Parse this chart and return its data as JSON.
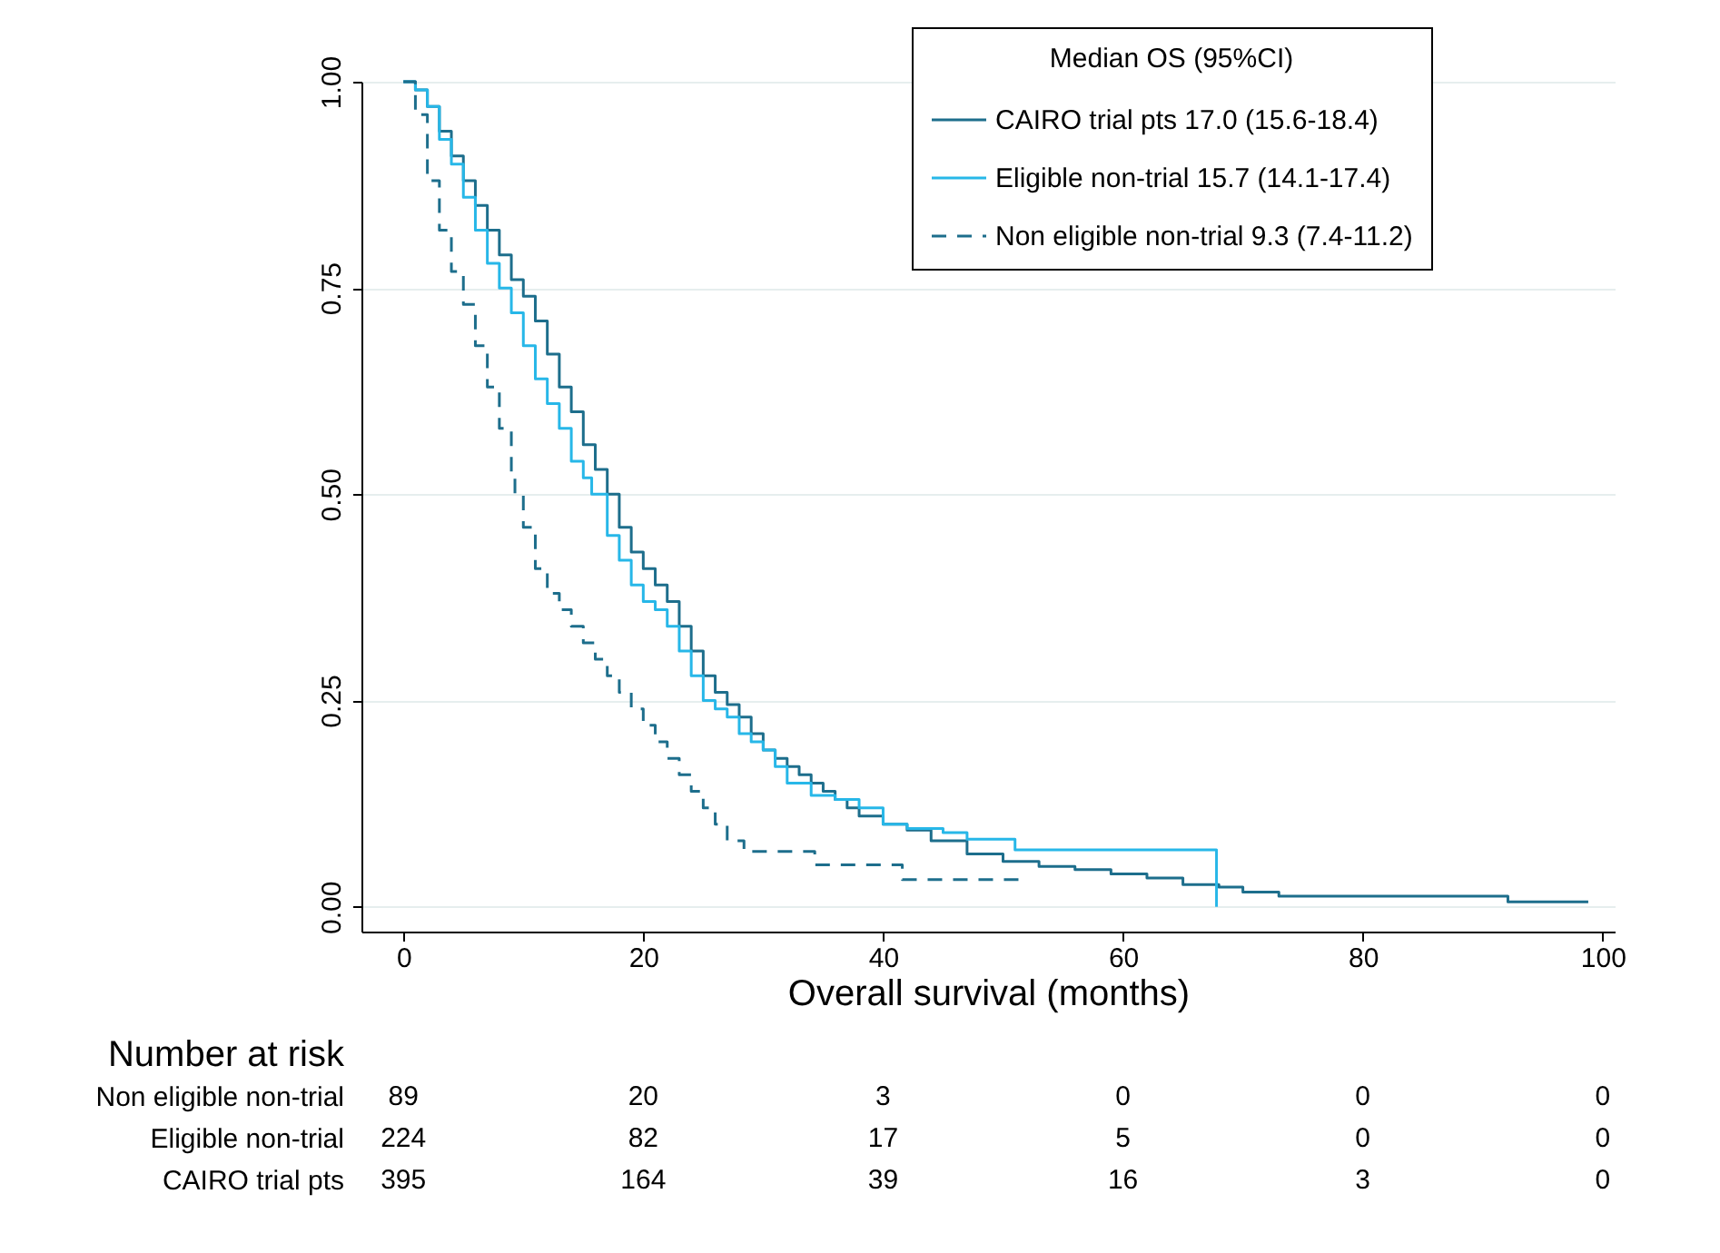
{
  "chart_data": {
    "type": "step",
    "xlabel": "Overall survival (months)",
    "legend_title": "Median OS (95%CI)",
    "legend": "top right",
    "grid": "y",
    "xlim": [
      -3.5,
      101
    ],
    "xticks": [
      0,
      20,
      40,
      60,
      80,
      100
    ],
    "ylim": [
      -0.03,
      1.0
    ],
    "yticks": [
      {
        "value": 0,
        "label": "0.00"
      },
      {
        "value": 0.25,
        "label": "0.25"
      },
      {
        "value": 0.5,
        "label": "0.50"
      },
      {
        "value": 0.75,
        "label": "0.75"
      },
      {
        "value": 1,
        "label": "1.00"
      }
    ],
    "series": [
      {
        "name": "CAIRO trial pts 17.0 (15.6-18.4)",
        "color": "#1d6e8c",
        "line_style": "solid",
        "x": [
          0,
          1,
          2,
          3,
          4,
          5,
          6,
          7,
          8,
          9,
          10,
          11,
          12,
          13,
          14,
          15,
          16,
          17,
          18,
          19,
          20,
          21,
          22,
          23,
          24,
          25,
          26,
          27,
          28,
          29,
          30,
          31,
          32,
          33,
          34,
          35,
          36,
          37,
          38,
          40,
          42,
          44,
          47,
          50,
          53,
          56,
          59,
          62,
          65,
          68,
          70,
          73,
          92,
          92.1,
          98.8
        ],
        "values": [
          1,
          0.99,
          0.97,
          0.94,
          0.91,
          0.88,
          0.85,
          0.82,
          0.79,
          0.76,
          0.74,
          0.71,
          0.67,
          0.63,
          0.6,
          0.56,
          0.53,
          0.5,
          0.46,
          0.43,
          0.41,
          0.39,
          0.37,
          0.34,
          0.31,
          0.28,
          0.26,
          0.245,
          0.23,
          0.21,
          0.19,
          0.18,
          0.17,
          0.16,
          0.15,
          0.14,
          0.13,
          0.12,
          0.11,
          0.1,
          0.093,
          0.08,
          0.064,
          0.055,
          0.049,
          0.045,
          0.04,
          0.035,
          0.027,
          0.024,
          0.018,
          0.013,
          0.013,
          0.006,
          0.006
        ]
      },
      {
        "name": "Eligible non-trial 15.7 (14.1-17.4)",
        "color": "#27b7e8",
        "line_style": "solid",
        "x": [
          0,
          1,
          2,
          3,
          4,
          5,
          6,
          7,
          8,
          9,
          10,
          11,
          12,
          13,
          14,
          15,
          15.7,
          17,
          18,
          19,
          20,
          21,
          22,
          23,
          24,
          25,
          26,
          27,
          28,
          29,
          30,
          31,
          32,
          34,
          36,
          38,
          40,
          42,
          45,
          47,
          51,
          67.8,
          67.8
        ],
        "values": [
          1,
          0.99,
          0.97,
          0.93,
          0.9,
          0.86,
          0.82,
          0.78,
          0.75,
          0.72,
          0.68,
          0.64,
          0.61,
          0.58,
          0.54,
          0.52,
          0.5,
          0.45,
          0.42,
          0.39,
          0.37,
          0.36,
          0.34,
          0.31,
          0.28,
          0.25,
          0.24,
          0.23,
          0.21,
          0.2,
          0.19,
          0.17,
          0.15,
          0.135,
          0.13,
          0.12,
          0.1,
          0.095,
          0.09,
          0.082,
          0.069,
          0.069,
          0
        ]
      },
      {
        "name": "Non eligible non-trial 9.3 (7.4-11.2)",
        "color": "#1d6e8c",
        "line_style": "dashed",
        "x": [
          0,
          1,
          2,
          3,
          4,
          5,
          6,
          7,
          8,
          9,
          9.3,
          10,
          11,
          12,
          13,
          14,
          15,
          16,
          17,
          18,
          19,
          20,
          21,
          22,
          23,
          24,
          25,
          26,
          27,
          28.4,
          34.3,
          41.6,
          51.7
        ],
        "values": [
          1,
          0.96,
          0.88,
          0.82,
          0.77,
          0.73,
          0.68,
          0.63,
          0.58,
          0.52,
          0.5,
          0.46,
          0.41,
          0.38,
          0.36,
          0.34,
          0.32,
          0.3,
          0.28,
          0.26,
          0.24,
          0.22,
          0.2,
          0.18,
          0.16,
          0.14,
          0.12,
          0.1,
          0.08,
          0.067,
          0.051,
          0.033,
          0.033
        ]
      }
    ],
    "annotations": [
      "Number at risk",
      "Non eligible non-trial",
      "89",
      "20",
      "3",
      "0",
      "0",
      "0",
      "Eligible non-trial",
      "224",
      "82",
      "17",
      "5",
      "0",
      "0",
      "CAIRO trial pts",
      "395",
      "164",
      "39",
      "16",
      "3",
      "0"
    ]
  }
}
